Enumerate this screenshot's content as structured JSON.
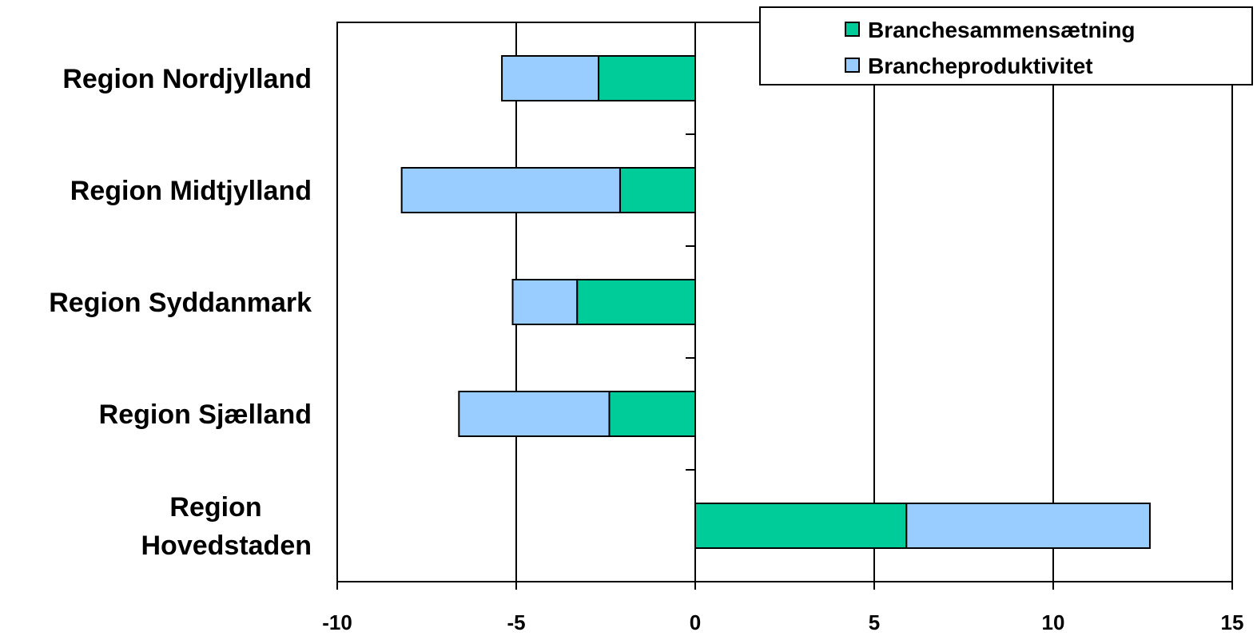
{
  "chart_data": {
    "type": "bar",
    "orientation": "horizontal",
    "stacked": true,
    "categories": [
      [
        "Region Nordjylland"
      ],
      [
        "Region Midtjylland"
      ],
      [
        "Region Syddanmark"
      ],
      [
        "Region Sjælland"
      ],
      [
        "Region",
        "Hovedstaden"
      ]
    ],
    "series": [
      {
        "name": "Branchesammensætning",
        "color": "#00CC99",
        "values": [
          -2.7,
          -2.1,
          -3.3,
          -2.4,
          5.9
        ]
      },
      {
        "name": "Brancheproduktivitet",
        "color": "#99CCFF",
        "values": [
          -2.7,
          -6.1,
          -1.8,
          -4.2,
          6.8
        ]
      }
    ],
    "xlim": [
      -10,
      15
    ],
    "xticks": [
      "-10",
      "-5",
      "0",
      "5",
      "10",
      "15"
    ],
    "grid": "vertical",
    "legend_position": "top-right",
    "title": "",
    "xlabel": "",
    "ylabel": ""
  }
}
